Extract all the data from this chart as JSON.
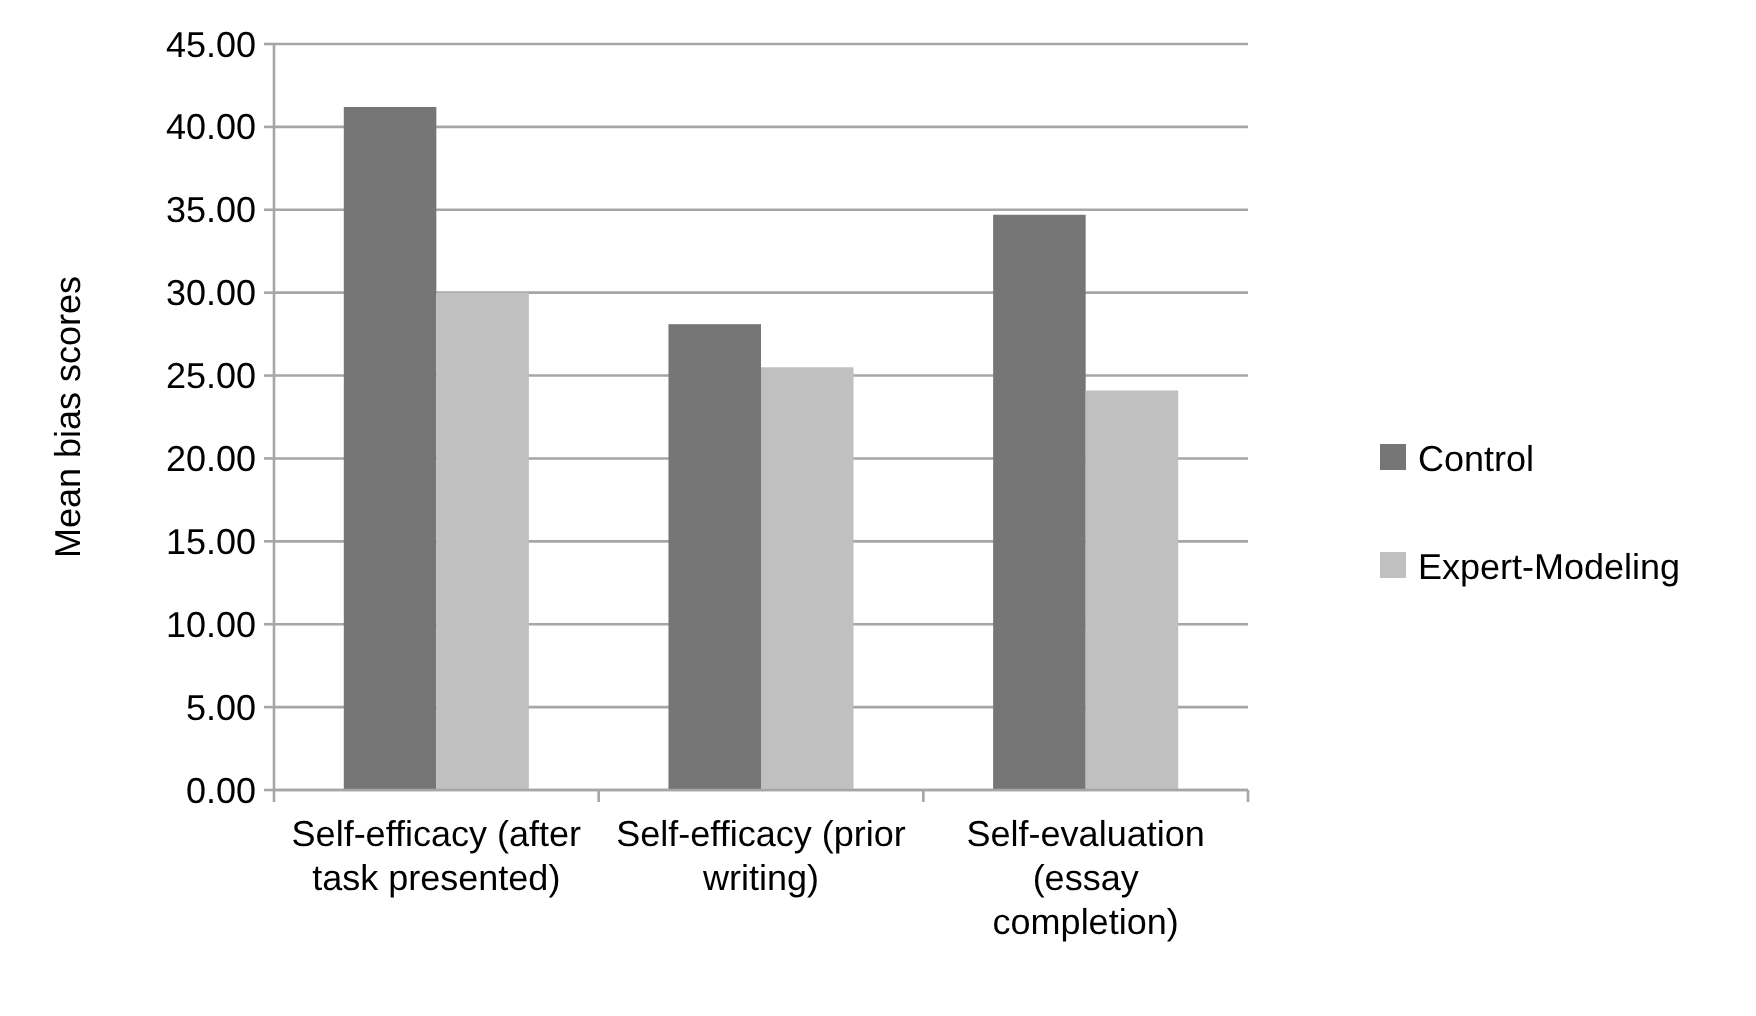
{
  "chart_data": {
    "type": "bar",
    "ylabel": "Mean bias scores",
    "categories": [
      "Self-efficacy (after task presented)",
      "Self-efficacy (prior writing)",
      "Self-evaluation (essay completion)"
    ],
    "series": [
      {
        "name": "Control",
        "color": "#767676",
        "values": [
          41.2,
          28.1,
          34.7
        ]
      },
      {
        "name": "Expert-Modeling",
        "color": "#c0c0c0",
        "values": [
          30.0,
          25.5,
          24.1
        ]
      }
    ],
    "ylim": [
      0,
      45
    ],
    "yticks": [
      {
        "value": 0,
        "label": "0.00"
      },
      {
        "value": 5,
        "label": "5.00"
      },
      {
        "value": 10,
        "label": "10.00"
      },
      {
        "value": 15,
        "label": "15.00"
      },
      {
        "value": 20,
        "label": "20.00"
      },
      {
        "value": 25,
        "label": "25.00"
      },
      {
        "value": 30,
        "label": "30.00"
      },
      {
        "value": 35,
        "label": "35.00"
      },
      {
        "value": 40,
        "label": "40.00"
      },
      {
        "value": 45,
        "label": "45.00"
      }
    ],
    "grid": "y",
    "legend": "right"
  }
}
